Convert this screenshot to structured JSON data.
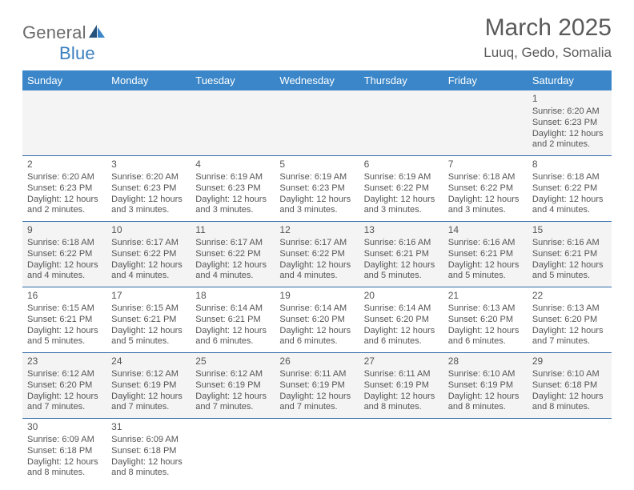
{
  "logo": {
    "general": "General",
    "blue": "Blue"
  },
  "title": "March 2025",
  "location": "Luuq, Gedo, Somalia",
  "colors": {
    "header_bg": "#3a86c8",
    "header_fg": "#ffffff",
    "row_alt": "#f4f4f4",
    "row_divider": "#2f6aa8",
    "text": "#555555",
    "title_text": "#5a5a5a",
    "logo_grey": "#6b6b6b",
    "logo_blue": "#3a7fbf"
  },
  "weekdays": [
    "Sunday",
    "Monday",
    "Tuesday",
    "Wednesday",
    "Thursday",
    "Friday",
    "Saturday"
  ],
  "weeks": [
    [
      null,
      null,
      null,
      null,
      null,
      null,
      {
        "n": "1",
        "sr": "Sunrise: 6:20 AM",
        "ss": "Sunset: 6:23 PM",
        "d1": "Daylight: 12 hours",
        "d2": "and 2 minutes."
      }
    ],
    [
      {
        "n": "2",
        "sr": "Sunrise: 6:20 AM",
        "ss": "Sunset: 6:23 PM",
        "d1": "Daylight: 12 hours",
        "d2": "and 2 minutes."
      },
      {
        "n": "3",
        "sr": "Sunrise: 6:20 AM",
        "ss": "Sunset: 6:23 PM",
        "d1": "Daylight: 12 hours",
        "d2": "and 3 minutes."
      },
      {
        "n": "4",
        "sr": "Sunrise: 6:19 AM",
        "ss": "Sunset: 6:23 PM",
        "d1": "Daylight: 12 hours",
        "d2": "and 3 minutes."
      },
      {
        "n": "5",
        "sr": "Sunrise: 6:19 AM",
        "ss": "Sunset: 6:23 PM",
        "d1": "Daylight: 12 hours",
        "d2": "and 3 minutes."
      },
      {
        "n": "6",
        "sr": "Sunrise: 6:19 AM",
        "ss": "Sunset: 6:22 PM",
        "d1": "Daylight: 12 hours",
        "d2": "and 3 minutes."
      },
      {
        "n": "7",
        "sr": "Sunrise: 6:18 AM",
        "ss": "Sunset: 6:22 PM",
        "d1": "Daylight: 12 hours",
        "d2": "and 3 minutes."
      },
      {
        "n": "8",
        "sr": "Sunrise: 6:18 AM",
        "ss": "Sunset: 6:22 PM",
        "d1": "Daylight: 12 hours",
        "d2": "and 4 minutes."
      }
    ],
    [
      {
        "n": "9",
        "sr": "Sunrise: 6:18 AM",
        "ss": "Sunset: 6:22 PM",
        "d1": "Daylight: 12 hours",
        "d2": "and 4 minutes."
      },
      {
        "n": "10",
        "sr": "Sunrise: 6:17 AM",
        "ss": "Sunset: 6:22 PM",
        "d1": "Daylight: 12 hours",
        "d2": "and 4 minutes."
      },
      {
        "n": "11",
        "sr": "Sunrise: 6:17 AM",
        "ss": "Sunset: 6:22 PM",
        "d1": "Daylight: 12 hours",
        "d2": "and 4 minutes."
      },
      {
        "n": "12",
        "sr": "Sunrise: 6:17 AM",
        "ss": "Sunset: 6:22 PM",
        "d1": "Daylight: 12 hours",
        "d2": "and 4 minutes."
      },
      {
        "n": "13",
        "sr": "Sunrise: 6:16 AM",
        "ss": "Sunset: 6:21 PM",
        "d1": "Daylight: 12 hours",
        "d2": "and 5 minutes."
      },
      {
        "n": "14",
        "sr": "Sunrise: 6:16 AM",
        "ss": "Sunset: 6:21 PM",
        "d1": "Daylight: 12 hours",
        "d2": "and 5 minutes."
      },
      {
        "n": "15",
        "sr": "Sunrise: 6:16 AM",
        "ss": "Sunset: 6:21 PM",
        "d1": "Daylight: 12 hours",
        "d2": "and 5 minutes."
      }
    ],
    [
      {
        "n": "16",
        "sr": "Sunrise: 6:15 AM",
        "ss": "Sunset: 6:21 PM",
        "d1": "Daylight: 12 hours",
        "d2": "and 5 minutes."
      },
      {
        "n": "17",
        "sr": "Sunrise: 6:15 AM",
        "ss": "Sunset: 6:21 PM",
        "d1": "Daylight: 12 hours",
        "d2": "and 5 minutes."
      },
      {
        "n": "18",
        "sr": "Sunrise: 6:14 AM",
        "ss": "Sunset: 6:21 PM",
        "d1": "Daylight: 12 hours",
        "d2": "and 6 minutes."
      },
      {
        "n": "19",
        "sr": "Sunrise: 6:14 AM",
        "ss": "Sunset: 6:20 PM",
        "d1": "Daylight: 12 hours",
        "d2": "and 6 minutes."
      },
      {
        "n": "20",
        "sr": "Sunrise: 6:14 AM",
        "ss": "Sunset: 6:20 PM",
        "d1": "Daylight: 12 hours",
        "d2": "and 6 minutes."
      },
      {
        "n": "21",
        "sr": "Sunrise: 6:13 AM",
        "ss": "Sunset: 6:20 PM",
        "d1": "Daylight: 12 hours",
        "d2": "and 6 minutes."
      },
      {
        "n": "22",
        "sr": "Sunrise: 6:13 AM",
        "ss": "Sunset: 6:20 PM",
        "d1": "Daylight: 12 hours",
        "d2": "and 7 minutes."
      }
    ],
    [
      {
        "n": "23",
        "sr": "Sunrise: 6:12 AM",
        "ss": "Sunset: 6:20 PM",
        "d1": "Daylight: 12 hours",
        "d2": "and 7 minutes."
      },
      {
        "n": "24",
        "sr": "Sunrise: 6:12 AM",
        "ss": "Sunset: 6:19 PM",
        "d1": "Daylight: 12 hours",
        "d2": "and 7 minutes."
      },
      {
        "n": "25",
        "sr": "Sunrise: 6:12 AM",
        "ss": "Sunset: 6:19 PM",
        "d1": "Daylight: 12 hours",
        "d2": "and 7 minutes."
      },
      {
        "n": "26",
        "sr": "Sunrise: 6:11 AM",
        "ss": "Sunset: 6:19 PM",
        "d1": "Daylight: 12 hours",
        "d2": "and 7 minutes."
      },
      {
        "n": "27",
        "sr": "Sunrise: 6:11 AM",
        "ss": "Sunset: 6:19 PM",
        "d1": "Daylight: 12 hours",
        "d2": "and 8 minutes."
      },
      {
        "n": "28",
        "sr": "Sunrise: 6:10 AM",
        "ss": "Sunset: 6:19 PM",
        "d1": "Daylight: 12 hours",
        "d2": "and 8 minutes."
      },
      {
        "n": "29",
        "sr": "Sunrise: 6:10 AM",
        "ss": "Sunset: 6:18 PM",
        "d1": "Daylight: 12 hours",
        "d2": "and 8 minutes."
      }
    ],
    [
      {
        "n": "30",
        "sr": "Sunrise: 6:09 AM",
        "ss": "Sunset: 6:18 PM",
        "d1": "Daylight: 12 hours",
        "d2": "and 8 minutes."
      },
      {
        "n": "31",
        "sr": "Sunrise: 6:09 AM",
        "ss": "Sunset: 6:18 PM",
        "d1": "Daylight: 12 hours",
        "d2": "and 8 minutes."
      },
      null,
      null,
      null,
      null,
      null
    ]
  ]
}
